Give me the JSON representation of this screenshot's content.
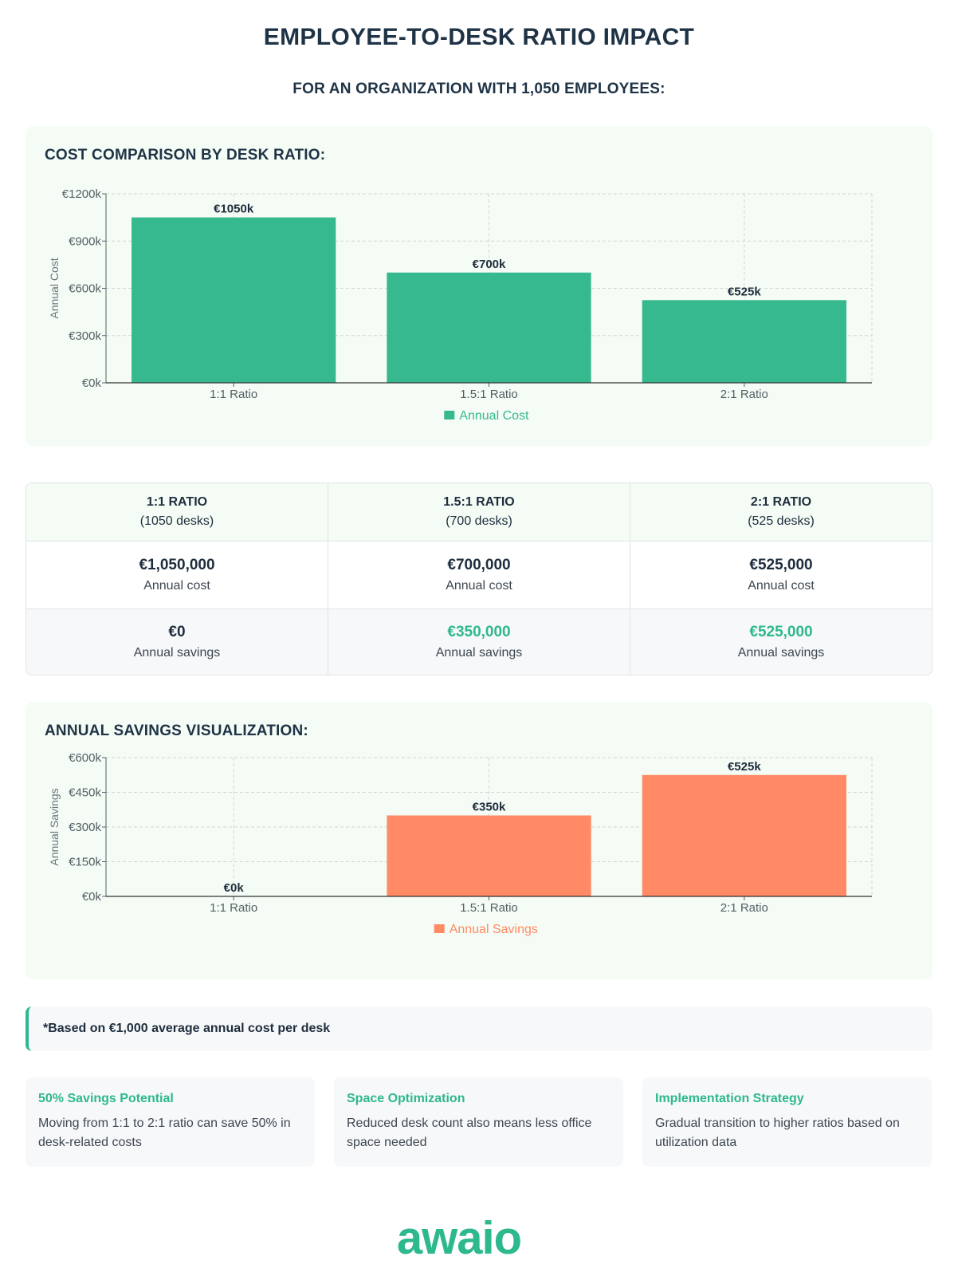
{
  "header": {
    "title": "EMPLOYEE-TO-DESK RATIO IMPACT",
    "subtitle": "FOR AN ORGANIZATION WITH 1,050 EMPLOYEES:"
  },
  "colors": {
    "cost_bar": "#36b98f",
    "savings_bar": "#ff8a65",
    "accent": "#2db88e"
  },
  "chart_data": [
    {
      "type": "bar",
      "panel_title": "COST COMPARISON BY DESK RATIO:",
      "categories": [
        "1:1 Ratio",
        "1.5:1 Ratio",
        "2:1 Ratio"
      ],
      "series": [
        {
          "name": "Annual Cost",
          "values": [
            1050,
            700,
            525
          ]
        }
      ],
      "value_labels": [
        "€1050k",
        "€700k",
        "€525k"
      ],
      "ylabel": "Annual Cost",
      "ylim": [
        0,
        1200
      ],
      "yticks": [
        0,
        300,
        600,
        900,
        1200
      ],
      "ytick_labels": [
        "€0k",
        "€300k",
        "€600k",
        "€900k",
        "€1200k"
      ],
      "grid": true,
      "legend": "bottom-center"
    },
    {
      "type": "bar",
      "panel_title": "ANNUAL SAVINGS VISUALIZATION:",
      "categories": [
        "1:1 Ratio",
        "1.5:1 Ratio",
        "2:1 Ratio"
      ],
      "series": [
        {
          "name": "Annual Savings",
          "values": [
            0,
            350,
            525
          ]
        }
      ],
      "value_labels": [
        "€0k",
        "€350k",
        "€525k"
      ],
      "ylabel": "Annual Savings",
      "ylim": [
        0,
        600
      ],
      "yticks": [
        0,
        150,
        300,
        450,
        600
      ],
      "ytick_labels": [
        "€0k",
        "€150k",
        "€300k",
        "€450k",
        "€600k"
      ],
      "grid": true,
      "legend": "bottom-center"
    }
  ],
  "table": {
    "columns": [
      {
        "ratio": "1:1 RATIO",
        "desks": "(1050 desks)",
        "cost": "€1,050,000",
        "cost_label": "Annual cost",
        "savings": "€0",
        "savings_label": "Annual savings"
      },
      {
        "ratio": "1.5:1 RATIO",
        "desks": "(700 desks)",
        "cost": "€700,000",
        "cost_label": "Annual cost",
        "savings": "€350,000",
        "savings_label": "Annual savings"
      },
      {
        "ratio": "2:1 RATIO",
        "desks": "(525 desks)",
        "cost": "€525,000",
        "cost_label": "Annual cost",
        "savings": "€525,000",
        "savings_label": "Annual savings"
      }
    ]
  },
  "note": "*Based on €1,000 average annual cost per desk",
  "cards": [
    {
      "title": "50% Savings Potential",
      "body": "Moving from 1:1 to 2:1 ratio can save 50% in desk-related costs"
    },
    {
      "title": "Space Optimization",
      "body": "Reduced desk count also means less office space needed"
    },
    {
      "title": "Implementation Strategy",
      "body": "Gradual transition to higher ratios based on utilization data"
    }
  ],
  "logo": {
    "text": "awaio"
  }
}
